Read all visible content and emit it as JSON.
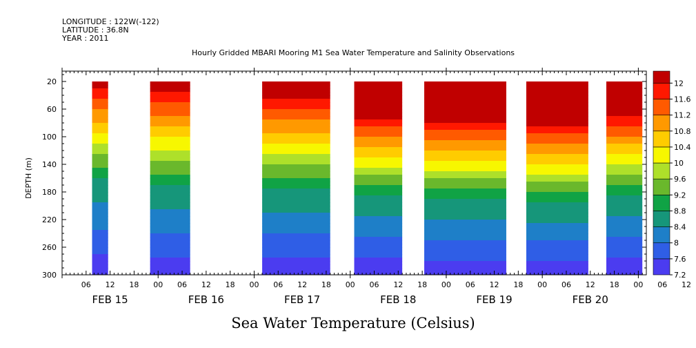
{
  "header": {
    "longitude": "LONGITUDE : 122W(-122)",
    "latitude": "LATITUDE : 36.8N",
    "year": "YEAR : 2011",
    "title": "Hourly Gridded MBARI Mooring M1 Sea Water Temperature and Salinity Observations"
  },
  "chart_data": {
    "type": "heatmap",
    "title": "Hourly Gridded MBARI Mooring M1 Sea Water Temperature and Salinity Observations",
    "variable_label": "Sea Water Temperature (Celsius)",
    "ylabel": "DEPTH (m)",
    "y_ticks": [
      20,
      60,
      100,
      140,
      180,
      220,
      260,
      300
    ],
    "ylim": [
      300,
      5
    ],
    "x_hour_ticks": [
      "06",
      "12",
      "18",
      "00",
      "06",
      "12",
      "18",
      "00",
      "06",
      "12",
      "18",
      "00",
      "06",
      "12",
      "18",
      "00",
      "06",
      "12",
      "18",
      "00",
      "06",
      "12",
      "18",
      "00",
      "06",
      "12"
    ],
    "day_labels": [
      "FEB 15",
      "FEB 16",
      "FEB 17",
      "FEB 18",
      "FEB 19",
      "FEB 20"
    ],
    "x_range_hours": [
      0,
      146
    ],
    "colorbar": {
      "levels": [
        7.2,
        7.6,
        8,
        8.4,
        8.8,
        9.2,
        9.6,
        10,
        10.4,
        10.8,
        11.2,
        11.6,
        12
      ],
      "range": [
        7.2,
        12.3
      ]
    },
    "segments": [
      {
        "start_hour": 7.5,
        "end_hour": 11.5,
        "mixed_layer_m": 25,
        "thermocline_m": 160
      },
      {
        "start_hour": 22,
        "end_hour": 32,
        "mixed_layer_m": 30,
        "thermocline_m": 170
      },
      {
        "start_hour": 50,
        "end_hour": 67,
        "mixed_layer_m": 40,
        "thermocline_m": 175
      },
      {
        "start_hour": 73,
        "end_hour": 85,
        "mixed_layer_m": 70,
        "thermocline_m": 185
      },
      {
        "start_hour": 90.5,
        "end_hour": 111,
        "mixed_layer_m": 75,
        "thermocline_m": 190
      },
      {
        "start_hour": 116,
        "end_hour": 131.5,
        "mixed_layer_m": 80,
        "thermocline_m": 195
      },
      {
        "start_hour": 136,
        "end_hour": 145,
        "mixed_layer_m": 65,
        "thermocline_m": 185
      }
    ]
  }
}
